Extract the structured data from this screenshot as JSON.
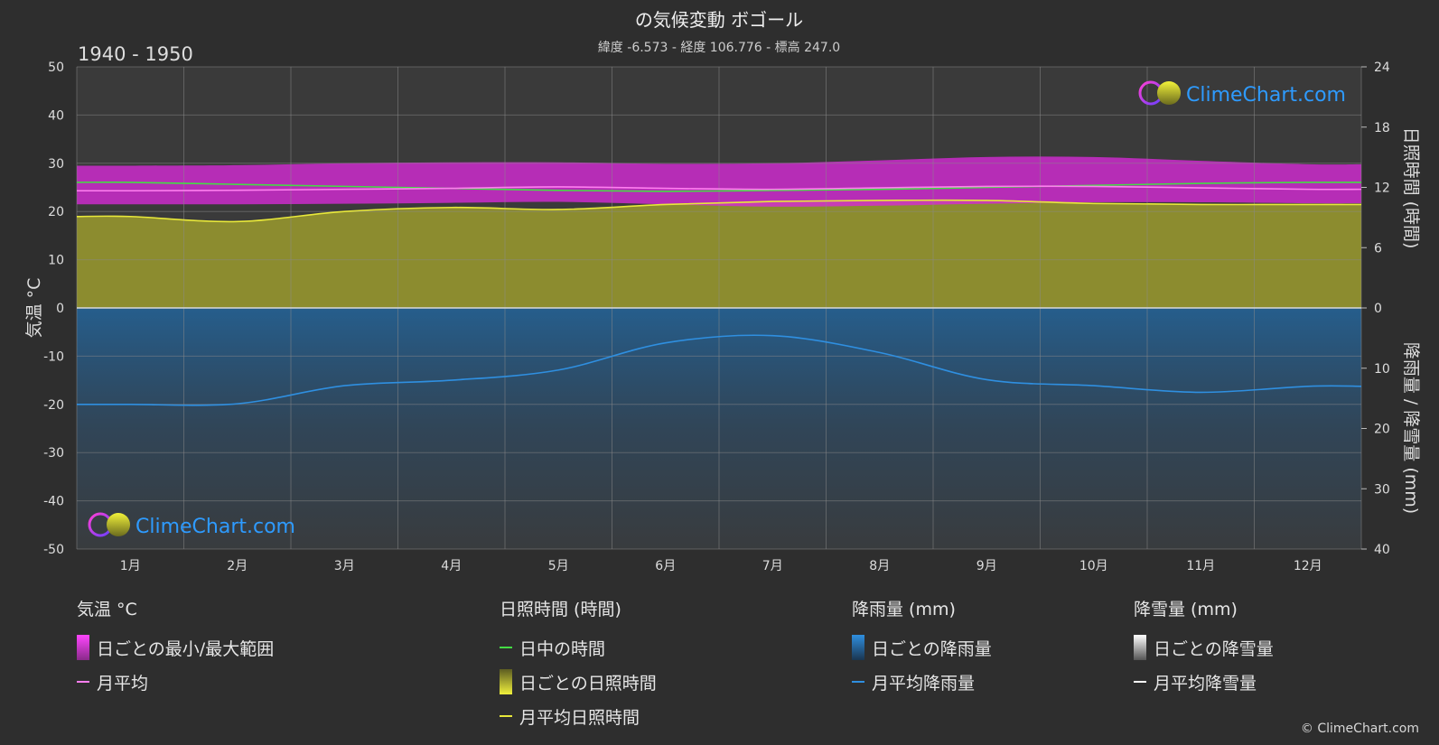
{
  "title": "の気候変動 ボゴール",
  "subtitle": "緯度 -6.573 - 経度 106.776 - 標高 247.0",
  "period": "1940 - 1950",
  "watermark": "ClimeChart.com",
  "copyright": "© ClimeChart.com",
  "colors": {
    "background": "#2e2e2e",
    "temp_range": "#d62bd6",
    "temp_mean": "#ff7ff0",
    "daylight": "#44dd44",
    "sunshine_fill": "#9b9b2e",
    "sunshine_mean": "#e8e83a",
    "rain_fill": "#1f6aa8",
    "rain_mean": "#2f8fe0",
    "snow_mean": "#ffffff",
    "watermark_text": "#2e9bff"
  },
  "chart_data": {
    "type": "area",
    "categories": [
      "1月",
      "2月",
      "3月",
      "4月",
      "5月",
      "6月",
      "7月",
      "8月",
      "9月",
      "10月",
      "11月",
      "12月"
    ],
    "left_axis": {
      "label": "気温 °C",
      "ticks": [
        50,
        40,
        30,
        20,
        10,
        0,
        -10,
        -20,
        -30,
        -40,
        -50
      ],
      "range": [
        -50,
        50
      ]
    },
    "right_axis_top": {
      "label": "日照時間 (時間)",
      "ticks": [
        24,
        18,
        12,
        6,
        0
      ],
      "range": [
        0,
        24
      ]
    },
    "right_axis_bottom": {
      "label": "降雨量 / 降雪量 (mm)",
      "ticks": [
        0,
        10,
        20,
        30,
        40
      ],
      "range": [
        0,
        40
      ]
    },
    "series": [
      {
        "name": "日中の時間",
        "unit": "hours",
        "values": [
          12.5,
          12.3,
          12.1,
          11.9,
          11.7,
          11.6,
          11.7,
          11.8,
          12.0,
          12.2,
          12.4,
          12.5
        ]
      },
      {
        "name": "月平均日照時間",
        "unit": "hours",
        "values": [
          9.1,
          8.6,
          9.6,
          10.0,
          9.8,
          10.3,
          10.6,
          10.7,
          10.7,
          10.4,
          10.3,
          10.3
        ]
      },
      {
        "name": "月平均",
        "unit": "°C",
        "values": [
          24.3,
          24.4,
          24.6,
          24.8,
          25.1,
          24.8,
          24.6,
          24.9,
          25.2,
          25.2,
          24.9,
          24.6
        ]
      },
      {
        "name": "日ごとの最小/最大範囲",
        "unit": "°C",
        "min": [
          21.5,
          21.5,
          21.6,
          21.8,
          22.0,
          21.5,
          21.0,
          21.2,
          21.6,
          21.9,
          21.9,
          21.7
        ],
        "max": [
          29.5,
          29.6,
          30.0,
          30.2,
          30.2,
          29.9,
          30.0,
          30.6,
          31.3,
          31.3,
          30.5,
          29.8
        ]
      },
      {
        "name": "月平均降雨量",
        "unit": "mm",
        "values": [
          16.0,
          15.9,
          12.9,
          12.0,
          10.3,
          5.8,
          4.6,
          7.4,
          11.9,
          12.9,
          14.0,
          13.0
        ]
      }
    ]
  },
  "legend": {
    "temperature": {
      "title": "気温 °C",
      "items": [
        "日ごとの最小/最大範囲",
        "月平均"
      ]
    },
    "sunshine": {
      "title": "日照時間 (時間)",
      "items": [
        "日中の時間",
        "日ごとの日照時間",
        "月平均日照時間"
      ]
    },
    "rain": {
      "title": "降雨量 (mm)",
      "items": [
        "日ごとの降雨量",
        "月平均降雨量"
      ]
    },
    "snow": {
      "title": "降雪量 (mm)",
      "items": [
        "日ごとの降雪量",
        "月平均降雪量"
      ]
    }
  }
}
